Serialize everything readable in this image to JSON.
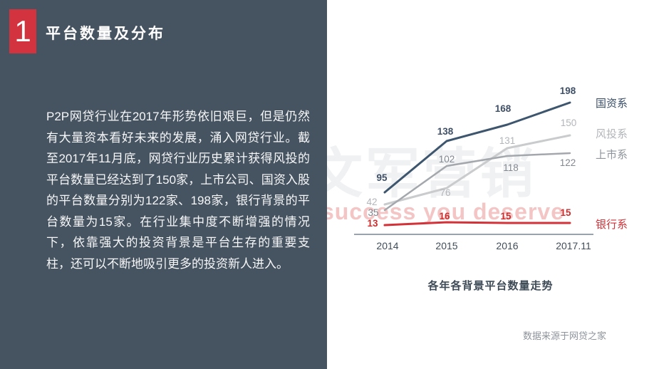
{
  "slide": {
    "section_number": "1",
    "title": "平台数量及分布",
    "body_text": "P2P网贷行业在2017年形势依旧艰巨，但是仍然有大量资本看好未来的发展，涌入网贷行业。截至2017年11月底，网贷行业历史累计获得风投的平台数量已经达到了150家，上市公司、国资入股的平台数量分别为122家、198家，银行背景的平台数量为15家。在行业集中度不断增强的情况下，依靠强大的投资背景是平台生存的重要支柱，还可以不断地吸引更多的投资新人进入。",
    "source_note": "数据来源于网贷之家"
  },
  "watermark": {
    "cn_text": "文军营销",
    "en_text": "success you deserve"
  },
  "chart_data": {
    "type": "line",
    "title": "各年各背景平台数量走势",
    "categories": [
      "2014",
      "2015",
      "2016",
      "2017.11"
    ],
    "series": [
      {
        "name": "国资系",
        "values": [
          95,
          138,
          168,
          198
        ],
        "color": "#3d566e"
      },
      {
        "name": "风投系",
        "values": [
          42,
          76,
          131,
          150
        ],
        "color": "#c9cbcd"
      },
      {
        "name": "上市系",
        "values": [
          35,
          102,
          118,
          122
        ],
        "color": "#a4a8ac"
      },
      {
        "name": "银行系",
        "values": [
          13,
          16,
          15,
          15
        ],
        "color": "#d23238"
      }
    ],
    "legend_position": "right",
    "grid": false,
    "data_labels": true,
    "xlabel": "",
    "ylabel": "",
    "ylim": [
      0,
      210
    ]
  },
  "colors": {
    "accent_red": "#d2333f",
    "panel_dark": "#465360",
    "axis_line": "#9aa3ad",
    "title_text": "#ffffff",
    "chart_title_text": "#3e4a56",
    "source_text": "#8d939b"
  }
}
